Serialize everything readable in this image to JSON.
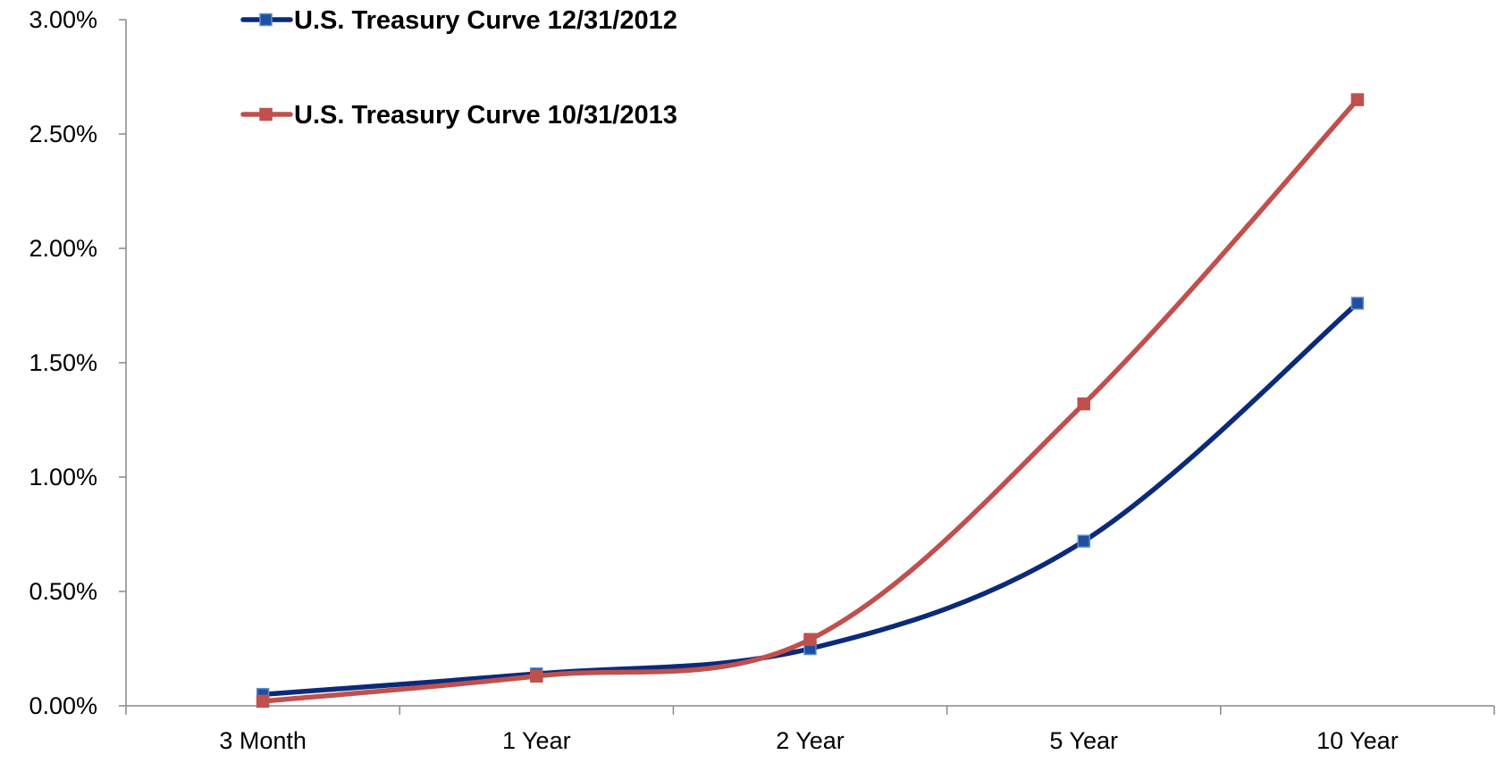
{
  "chart_data": {
    "type": "line",
    "categories": [
      "3 Month",
      "1 Year",
      "2 Year",
      "5 Year",
      "10 Year"
    ],
    "series": [
      {
        "name": "U.S. Treasury Curve 12/31/2012",
        "color": "#0b2a7a",
        "marker_color": "#1f4fa0",
        "values": [
          0.05,
          0.14,
          0.25,
          0.72,
          1.76
        ]
      },
      {
        "name": "U.S. Treasury Curve 10/31/2013",
        "color": "#c0504d",
        "marker_color": "#c0504d",
        "values": [
          0.02,
          0.13,
          0.29,
          1.32,
          2.65
        ]
      }
    ],
    "ylim": [
      0,
      3
    ],
    "y_ticks": [
      "0.00%",
      "0.50%",
      "1.00%",
      "1.50%",
      "2.00%",
      "2.50%",
      "3.00%"
    ],
    "y_tick_values": [
      0,
      0.5,
      1.0,
      1.5,
      2.0,
      2.5,
      3.0
    ],
    "grid": false,
    "legend_position": "top-left",
    "line_style": "smooth",
    "marker": "square"
  }
}
